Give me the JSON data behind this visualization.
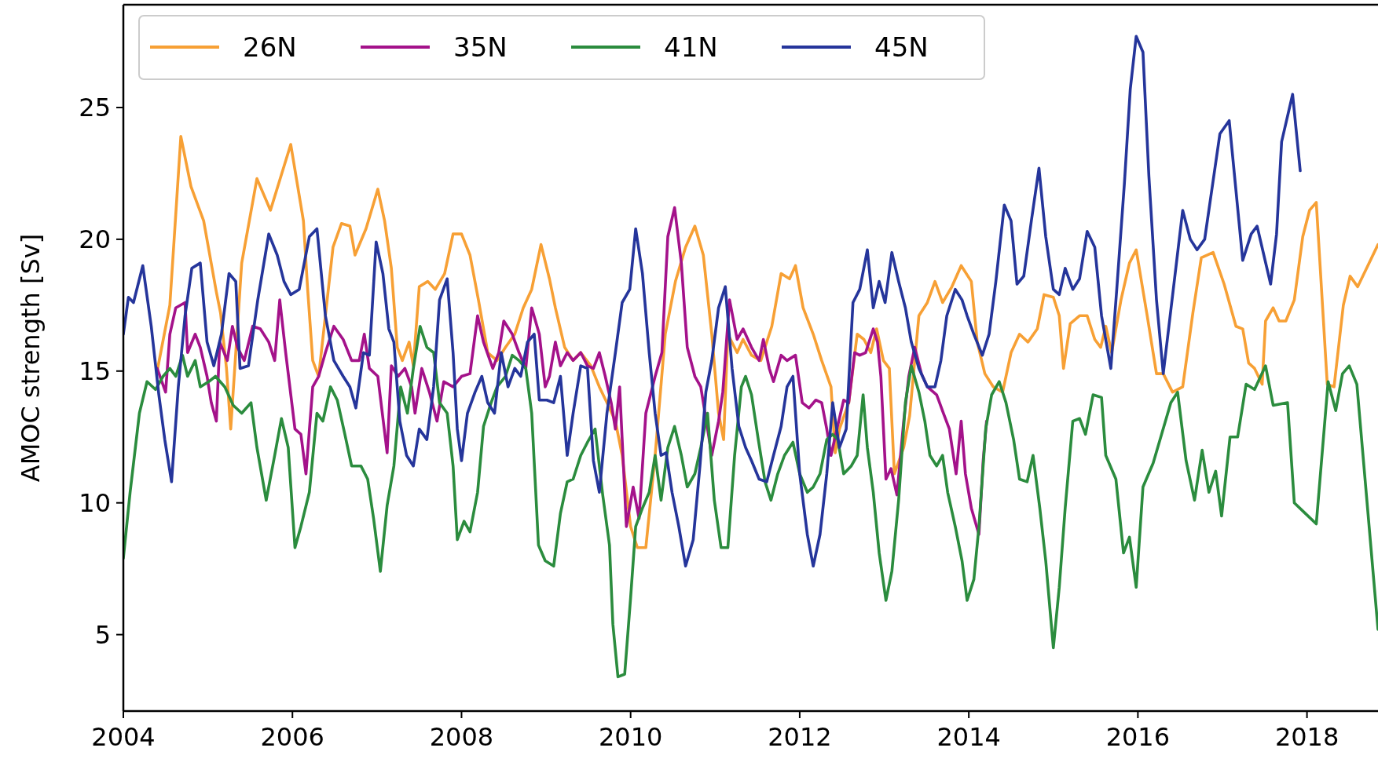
{
  "chart_data": {
    "type": "line",
    "ylabel": "AMOC strength [Sv]",
    "xlim": [
      2004,
      2018.84
    ],
    "xticks": [
      2004,
      2006,
      2008,
      2010,
      2012,
      2014,
      2016,
      2018
    ],
    "ylim": [
      2.1,
      28.9
    ],
    "yticks": [
      5,
      10,
      15,
      20,
      25
    ],
    "legend": "top left",
    "grid": false,
    "marker": "none",
    "line_style": "solid",
    "series": [
      {
        "name": "26N",
        "color": "#f7a035",
        "x": [
          2004.4,
          2004.55,
          2004.68,
          2004.8,
          2004.95,
          2005.1,
          2005.15,
          2005.22,
          2005.27,
          2005.4,
          2005.58,
          2005.74,
          2005.98,
          2006.13,
          2006.18,
          2006.24,
          2006.31,
          2006.48,
          2006.58,
          2006.68,
          2006.74,
          2006.87,
          2007.01,
          2007.09,
          2007.17,
          2007.24,
          2007.3,
          2007.38,
          2007.43,
          2007.5,
          2007.6,
          2007.69,
          2007.8,
          2007.9,
          2008.0,
          2008.1,
          2008.2,
          2008.31,
          2008.42,
          2008.52,
          2008.63,
          2008.73,
          2008.83,
          2008.94,
          2009.04,
          2009.11,
          2009.22,
          2009.32,
          2009.41,
          2009.53,
          2009.63,
          2009.72,
          2009.82,
          2009.9,
          2010.0,
          2010.08,
          2010.18,
          2010.29,
          2010.41,
          2010.53,
          2010.65,
          2010.76,
          2010.86,
          2010.96,
          2011.04,
          2011.1,
          2011.15,
          2011.26,
          2011.33,
          2011.43,
          2011.54,
          2011.67,
          2011.78,
          2011.88,
          2011.95,
          2012.04,
          2012.16,
          2012.26,
          2012.37,
          2012.42,
          2012.47,
          2012.58,
          2012.68,
          2012.76,
          2012.84,
          2012.91,
          2012.99,
          2013.06,
          2013.12,
          2013.23,
          2013.3,
          2013.41,
          2013.51,
          2013.6,
          2013.69,
          2013.8,
          2013.91,
          2014.03,
          2014.1,
          2014.19,
          2014.29,
          2014.4,
          2014.5,
          2014.6,
          2014.7,
          2014.81,
          2014.89,
          2015.0,
          2015.07,
          2015.12,
          2015.2,
          2015.31,
          2015.4,
          2015.49,
          2015.56,
          2015.62,
          2015.69,
          2015.8,
          2015.9,
          2015.98,
          2016.11,
          2016.22,
          2016.3,
          2016.41,
          2016.53,
          2016.65,
          2016.75,
          2016.89,
          2017.02,
          2017.16,
          2017.24,
          2017.31,
          2017.38,
          2017.47,
          2017.51,
          2017.6,
          2017.67,
          2017.75,
          2017.85,
          2017.95,
          2018.03,
          2018.11,
          2018.24,
          2018.32,
          2018.43,
          2018.51,
          2018.6,
          2018.72,
          2018.84
        ],
        "values": [
          15.0,
          17.5,
          23.9,
          22.0,
          20.7,
          18.0,
          17.2,
          15.1,
          12.8,
          19.1,
          22.3,
          21.1,
          23.6,
          20.7,
          18.1,
          15.4,
          14.8,
          19.7,
          20.6,
          20.5,
          19.4,
          20.4,
          21.9,
          20.7,
          18.9,
          15.9,
          15.4,
          16.1,
          15.2,
          18.2,
          18.4,
          18.1,
          18.7,
          20.2,
          20.2,
          19.4,
          17.7,
          15.7,
          15.4,
          15.9,
          16.4,
          17.4,
          18.1,
          19.8,
          18.5,
          17.4,
          15.9,
          15.4,
          15.7,
          15.2,
          14.4,
          13.8,
          13.1,
          11.8,
          9.1,
          8.3,
          8.3,
          11.8,
          16.4,
          18.4,
          19.7,
          20.5,
          19.4,
          16.4,
          13.4,
          12.4,
          16.4,
          15.7,
          16.2,
          15.6,
          15.4,
          16.7,
          18.7,
          18.5,
          19.0,
          17.4,
          16.4,
          15.4,
          14.4,
          11.9,
          12.8,
          13.8,
          16.4,
          16.2,
          15.7,
          16.6,
          15.4,
          15.1,
          11.1,
          12.1,
          13.3,
          17.1,
          17.6,
          18.4,
          17.6,
          18.2,
          19.0,
          18.4,
          16.1,
          14.9,
          14.4,
          14.2,
          15.7,
          16.4,
          16.1,
          16.6,
          17.9,
          17.8,
          17.1,
          15.1,
          16.8,
          17.1,
          17.1,
          16.2,
          15.9,
          16.7,
          15.7,
          17.7,
          19.1,
          19.6,
          17.1,
          14.9,
          14.9,
          14.2,
          14.4,
          17.2,
          19.3,
          19.5,
          18.3,
          16.7,
          16.6,
          15.3,
          15.1,
          14.5,
          16.9,
          17.4,
          16.9,
          16.9,
          17.7,
          20.1,
          21.1,
          21.4,
          14.5,
          14.4,
          17.5,
          18.6,
          18.2,
          19.0,
          19.8
        ]
      },
      {
        "name": "35N",
        "color": "#a4128a",
        "x": [
          2004.4,
          2004.5,
          2004.55,
          2004.62,
          2004.73,
          2004.76,
          2004.85,
          2004.91,
          2004.99,
          2005.04,
          2005.1,
          2005.14,
          2005.23,
          2005.29,
          2005.35,
          2005.43,
          2005.53,
          2005.62,
          2005.72,
          2005.79,
          2005.85,
          2005.92,
          2006.03,
          2006.1,
          2006.16,
          2006.24,
          2006.31,
          2006.39,
          2006.49,
          2006.6,
          2006.7,
          2006.79,
          2006.85,
          2006.91,
          2007.01,
          2007.12,
          2007.17,
          2007.25,
          2007.33,
          2007.41,
          2007.45,
          2007.53,
          2007.62,
          2007.71,
          2007.79,
          2007.9,
          2008.0,
          2008.1,
          2008.19,
          2008.26,
          2008.37,
          2008.44,
          2008.5,
          2008.6,
          2008.68,
          2008.76,
          2008.83,
          2008.92,
          2008.99,
          2009.04,
          2009.11,
          2009.17,
          2009.25,
          2009.32,
          2009.41,
          2009.49,
          2009.56,
          2009.63,
          2009.7,
          2009.77,
          2009.82,
          2009.87,
          2009.95,
          2010.03,
          2010.1,
          2010.18,
          2010.29,
          2010.37,
          2010.44,
          2010.52,
          2010.6,
          2010.67,
          2010.76,
          2010.83,
          2010.88,
          2010.96,
          2011.04,
          2011.09,
          2011.17,
          2011.26,
          2011.33,
          2011.43,
          2011.52,
          2011.57,
          2011.64,
          2011.69,
          2011.78,
          2011.85,
          2011.95,
          2012.03,
          2012.11,
          2012.19,
          2012.26,
          2012.32,
          2012.37,
          2012.44,
          2012.52,
          2012.58,
          2012.65,
          2012.71,
          2012.78,
          2012.87,
          2012.92,
          2012.96,
          2013.02,
          2013.08,
          2013.15,
          2013.23,
          2013.29,
          2013.36,
          2013.44,
          2013.51,
          2013.62,
          2013.7,
          2013.77,
          2013.85,
          2013.91,
          2013.96,
          2014.03,
          2014.12,
          2014.17,
          2014.21
        ],
        "values": [
          15.1,
          14.2,
          16.4,
          17.4,
          17.6,
          15.7,
          16.4,
          15.9,
          14.8,
          13.8,
          13.1,
          16.1,
          15.4,
          16.7,
          15.9,
          15.4,
          16.7,
          16.6,
          16.1,
          15.4,
          17.7,
          15.7,
          12.8,
          12.6,
          11.1,
          14.4,
          14.8,
          15.7,
          16.7,
          16.2,
          15.4,
          15.4,
          16.4,
          15.1,
          14.8,
          11.9,
          15.2,
          14.8,
          15.1,
          14.4,
          13.4,
          15.1,
          14.2,
          13.1,
          14.6,
          14.4,
          14.8,
          14.9,
          17.1,
          16.1,
          15.1,
          15.7,
          16.9,
          16.4,
          15.7,
          15.1,
          17.4,
          16.4,
          14.4,
          14.8,
          16.1,
          15.2,
          15.7,
          15.4,
          15.7,
          15.2,
          15.1,
          15.7,
          14.8,
          13.8,
          12.8,
          14.4,
          9.1,
          10.6,
          9.4,
          13.4,
          14.8,
          15.7,
          20.1,
          21.2,
          19.1,
          15.9,
          14.8,
          14.4,
          13.4,
          11.8,
          13.1,
          14.2,
          17.7,
          16.2,
          16.6,
          15.9,
          15.4,
          16.2,
          15.1,
          14.6,
          15.6,
          15.4,
          15.6,
          13.8,
          13.6,
          13.9,
          13.8,
          12.8,
          11.8,
          12.8,
          13.9,
          13.8,
          15.7,
          15.6,
          15.7,
          16.6,
          16.1,
          14.8,
          10.9,
          11.3,
          10.3,
          13.1,
          14.8,
          15.9,
          14.9,
          14.4,
          14.1,
          13.4,
          12.8,
          11.1,
          13.1,
          11.1,
          9.8,
          8.8,
          11.6,
          13.1
        ]
      },
      {
        "name": "41N",
        "color": "#2b8c3e",
        "x": [
          2004.0,
          2004.08,
          2004.19,
          2004.28,
          2004.38,
          2004.47,
          2004.55,
          2004.62,
          2004.7,
          2004.76,
          2004.85,
          2004.91,
          2005.01,
          2005.09,
          2005.2,
          2005.3,
          2005.4,
          2005.51,
          2005.58,
          2005.69,
          2005.79,
          2005.87,
          2005.95,
          2006.03,
          2006.1,
          2006.2,
          2006.29,
          2006.36,
          2006.45,
          2006.53,
          2006.62,
          2006.7,
          2006.81,
          2006.89,
          2006.96,
          2007.04,
          2007.12,
          2007.2,
          2007.28,
          2007.36,
          2007.43,
          2007.51,
          2007.59,
          2007.67,
          2007.74,
          2007.83,
          2007.9,
          2007.95,
          2008.03,
          2008.1,
          2008.19,
          2008.26,
          2008.35,
          2008.42,
          2008.52,
          2008.6,
          2008.68,
          2008.76,
          2008.83,
          2008.91,
          2008.99,
          2009.09,
          2009.17,
          2009.25,
          2009.32,
          2009.41,
          2009.49,
          2009.58,
          2009.67,
          2009.75,
          2009.79,
          2009.85,
          2009.93,
          2010.0,
          2010.06,
          2010.14,
          2010.22,
          2010.29,
          2010.36,
          2010.44,
          2010.52,
          2010.6,
          2010.67,
          2010.76,
          2010.83,
          2010.91,
          2010.99,
          2011.07,
          2011.15,
          2011.23,
          2011.31,
          2011.36,
          2011.43,
          2011.51,
          2011.59,
          2011.66,
          2011.74,
          2011.82,
          2011.92,
          2012.0,
          2012.09,
          2012.16,
          2012.24,
          2012.32,
          2012.39,
          2012.45,
          2012.52,
          2012.61,
          2012.68,
          2012.75,
          2012.8,
          2012.87,
          2012.94,
          2013.02,
          2013.09,
          2013.17,
          2013.25,
          2013.32,
          2013.41,
          2013.48,
          2013.54,
          2013.62,
          2013.69,
          2013.75,
          2013.84,
          2013.92,
          2013.98,
          2014.06,
          2014.12,
          2014.2,
          2014.27,
          2014.36,
          2014.44,
          2014.53,
          2014.6,
          2014.69,
          2014.76,
          2014.84,
          2014.91,
          2015.0,
          2015.07,
          2015.14,
          2015.23,
          2015.31,
          2015.38,
          2015.47,
          2015.57,
          2015.62,
          2015.74,
          2015.83,
          2015.9,
          2015.98,
          2016.06,
          2016.18,
          2016.28,
          2016.39,
          2016.47,
          2016.57,
          2016.67,
          2016.76,
          2016.84,
          2016.92,
          2016.99,
          2017.09,
          2017.18,
          2017.28,
          2017.38,
          2017.51,
          2017.6,
          2017.77,
          2017.85,
          2017.98,
          2018.11,
          2018.25,
          2018.34,
          2018.42,
          2018.5,
          2018.59,
          2018.84
        ],
        "values": [
          7.9,
          10.4,
          13.4,
          14.6,
          14.3,
          14.8,
          15.1,
          14.8,
          15.6,
          14.8,
          15.4,
          14.4,
          14.6,
          14.8,
          14.4,
          13.7,
          13.4,
          13.8,
          12.1,
          10.1,
          11.8,
          13.2,
          12.1,
          8.3,
          9.1,
          10.4,
          13.4,
          13.1,
          14.4,
          13.9,
          12.6,
          11.4,
          11.4,
          10.9,
          9.4,
          7.4,
          9.9,
          11.4,
          14.4,
          13.4,
          15.1,
          16.7,
          15.9,
          15.7,
          13.8,
          13.4,
          11.4,
          8.6,
          9.3,
          8.9,
          10.4,
          12.9,
          13.8,
          14.4,
          14.8,
          15.6,
          15.4,
          15.1,
          13.4,
          8.4,
          7.8,
          7.6,
          9.6,
          10.8,
          10.9,
          11.8,
          12.3,
          12.8,
          10.3,
          8.4,
          5.4,
          3.4,
          3.5,
          6.4,
          9.1,
          9.8,
          10.4,
          11.8,
          10.1,
          12.1,
          12.9,
          11.8,
          10.6,
          11.1,
          12.1,
          13.4,
          10.1,
          8.3,
          8.3,
          11.8,
          14.4,
          14.8,
          14.1,
          12.4,
          10.8,
          10.1,
          11.1,
          11.8,
          12.3,
          11.1,
          10.4,
          10.6,
          11.1,
          12.4,
          12.6,
          12.4,
          11.1,
          11.4,
          11.8,
          14.1,
          12.1,
          10.4,
          8.1,
          6.3,
          7.4,
          10.1,
          13.8,
          15.2,
          14.2,
          13.1,
          11.8,
          11.4,
          11.8,
          10.4,
          9.1,
          7.8,
          6.3,
          7.1,
          9.1,
          12.8,
          14.1,
          14.6,
          13.8,
          12.4,
          10.9,
          10.8,
          11.8,
          9.8,
          7.8,
          4.5,
          6.8,
          9.8,
          13.1,
          13.2,
          12.6,
          14.1,
          14.0,
          11.8,
          10.9,
          8.1,
          8.7,
          6.8,
          10.6,
          11.5,
          12.6,
          13.8,
          14.2,
          11.6,
          10.1,
          12.0,
          10.4,
          11.2,
          9.5,
          12.5,
          12.5,
          14.5,
          14.3,
          15.2,
          13.7,
          13.8,
          10.0,
          9.6,
          9.2,
          14.6,
          13.5,
          14.9,
          15.2,
          14.5,
          5.2
        ]
      },
      {
        "name": "45N",
        "color": "#25359b",
        "x": [
          2004.0,
          2004.06,
          2004.12,
          2004.23,
          2004.33,
          2004.42,
          2004.49,
          2004.57,
          2004.65,
          2004.73,
          2004.81,
          2004.91,
          2004.99,
          2005.07,
          2005.16,
          2005.25,
          2005.33,
          2005.38,
          2005.48,
          2005.59,
          2005.72,
          2005.82,
          2005.9,
          2005.98,
          2006.08,
          2006.2,
          2006.29,
          2006.39,
          2006.49,
          2006.6,
          2006.68,
          2006.75,
          2006.84,
          2006.91,
          2006.99,
          2007.07,
          2007.14,
          2007.2,
          2007.27,
          2007.35,
          2007.43,
          2007.5,
          2007.59,
          2007.67,
          2007.74,
          2007.83,
          2007.9,
          2007.95,
          2008.0,
          2008.07,
          2008.16,
          2008.24,
          2008.31,
          2008.39,
          2008.47,
          2008.55,
          2008.63,
          2008.7,
          2008.78,
          2008.86,
          2008.92,
          2009.01,
          2009.09,
          2009.17,
          2009.25,
          2009.32,
          2009.41,
          2009.49,
          2009.56,
          2009.63,
          2009.72,
          2009.82,
          2009.9,
          2009.99,
          2010.06,
          2010.14,
          2010.22,
          2010.29,
          2010.36,
          2010.42,
          2010.49,
          2010.57,
          2010.65,
          2010.74,
          2010.82,
          2010.89,
          2010.96,
          2011.04,
          2011.12,
          2011.2,
          2011.28,
          2011.36,
          2011.43,
          2011.52,
          2011.61,
          2011.69,
          2011.78,
          2011.85,
          2011.92,
          2012.0,
          2012.09,
          2012.16,
          2012.24,
          2012.32,
          2012.39,
          2012.47,
          2012.55,
          2012.63,
          2012.71,
          2012.8,
          2012.87,
          2012.94,
          2013.01,
          2013.09,
          2013.17,
          2013.25,
          2013.32,
          2013.41,
          2013.51,
          2013.6,
          2013.67,
          2013.74,
          2013.84,
          2013.92,
          2013.98,
          2014.06,
          2014.16,
          2014.24,
          2014.32,
          2014.42,
          2014.5,
          2014.57,
          2014.65,
          2014.74,
          2014.83,
          2014.91,
          2015.0,
          2015.07,
          2015.14,
          2015.23,
          2015.31,
          2015.4,
          2015.49,
          2015.57,
          2015.68,
          2015.75,
          2015.84,
          2015.91,
          2015.98,
          2016.06,
          2016.13,
          2016.22,
          2016.3,
          2016.53,
          2016.62,
          2016.7,
          2016.79,
          2016.97,
          2017.08,
          2017.24,
          2017.34,
          2017.41,
          2017.57,
          2017.64,
          2017.7,
          2017.83,
          2017.92
        ],
        "values": [
          16.4,
          17.8,
          17.6,
          19.0,
          16.7,
          14.1,
          12.4,
          10.8,
          14.4,
          17.1,
          18.9,
          19.1,
          16.1,
          15.2,
          16.4,
          18.7,
          18.4,
          15.1,
          15.2,
          17.7,
          20.2,
          19.4,
          18.4,
          17.9,
          18.1,
          20.1,
          20.4,
          17.1,
          15.4,
          14.8,
          14.4,
          13.6,
          15.7,
          15.6,
          19.9,
          18.7,
          16.6,
          16.1,
          13.1,
          11.8,
          11.4,
          12.8,
          12.4,
          14.4,
          17.7,
          18.5,
          15.7,
          12.8,
          11.6,
          13.4,
          14.2,
          14.8,
          13.8,
          13.4,
          15.7,
          14.4,
          15.1,
          14.8,
          16.1,
          16.4,
          13.9,
          13.9,
          13.8,
          14.8,
          11.8,
          13.4,
          15.2,
          15.1,
          11.6,
          10.4,
          13.4,
          15.7,
          17.6,
          18.1,
          20.4,
          18.7,
          15.7,
          13.4,
          11.8,
          11.9,
          10.4,
          9.1,
          7.6,
          8.6,
          11.4,
          14.2,
          15.4,
          17.4,
          18.2,
          15.1,
          12.9,
          12.1,
          11.6,
          10.9,
          10.8,
          11.8,
          12.9,
          14.4,
          14.8,
          11.1,
          8.8,
          7.6,
          8.8,
          11.1,
          13.8,
          12.1,
          12.8,
          17.6,
          18.1,
          19.6,
          17.4,
          18.4,
          17.6,
          19.5,
          18.4,
          17.4,
          16.1,
          15.1,
          14.4,
          14.4,
          15.4,
          17.1,
          18.1,
          17.7,
          17.1,
          16.4,
          15.6,
          16.4,
          18.4,
          21.3,
          20.7,
          18.3,
          18.6,
          20.7,
          22.7,
          20.1,
          18.1,
          17.9,
          18.9,
          18.1,
          18.5,
          20.3,
          19.7,
          17.1,
          15.1,
          18.1,
          22.1,
          25.7,
          27.7,
          27.1,
          22.4,
          17.7,
          14.9,
          21.1,
          20.0,
          19.6,
          20.0,
          24.0,
          24.5,
          19.2,
          20.2,
          20.5,
          18.3,
          20.2,
          23.7,
          25.5,
          22.6
        ]
      }
    ]
  }
}
